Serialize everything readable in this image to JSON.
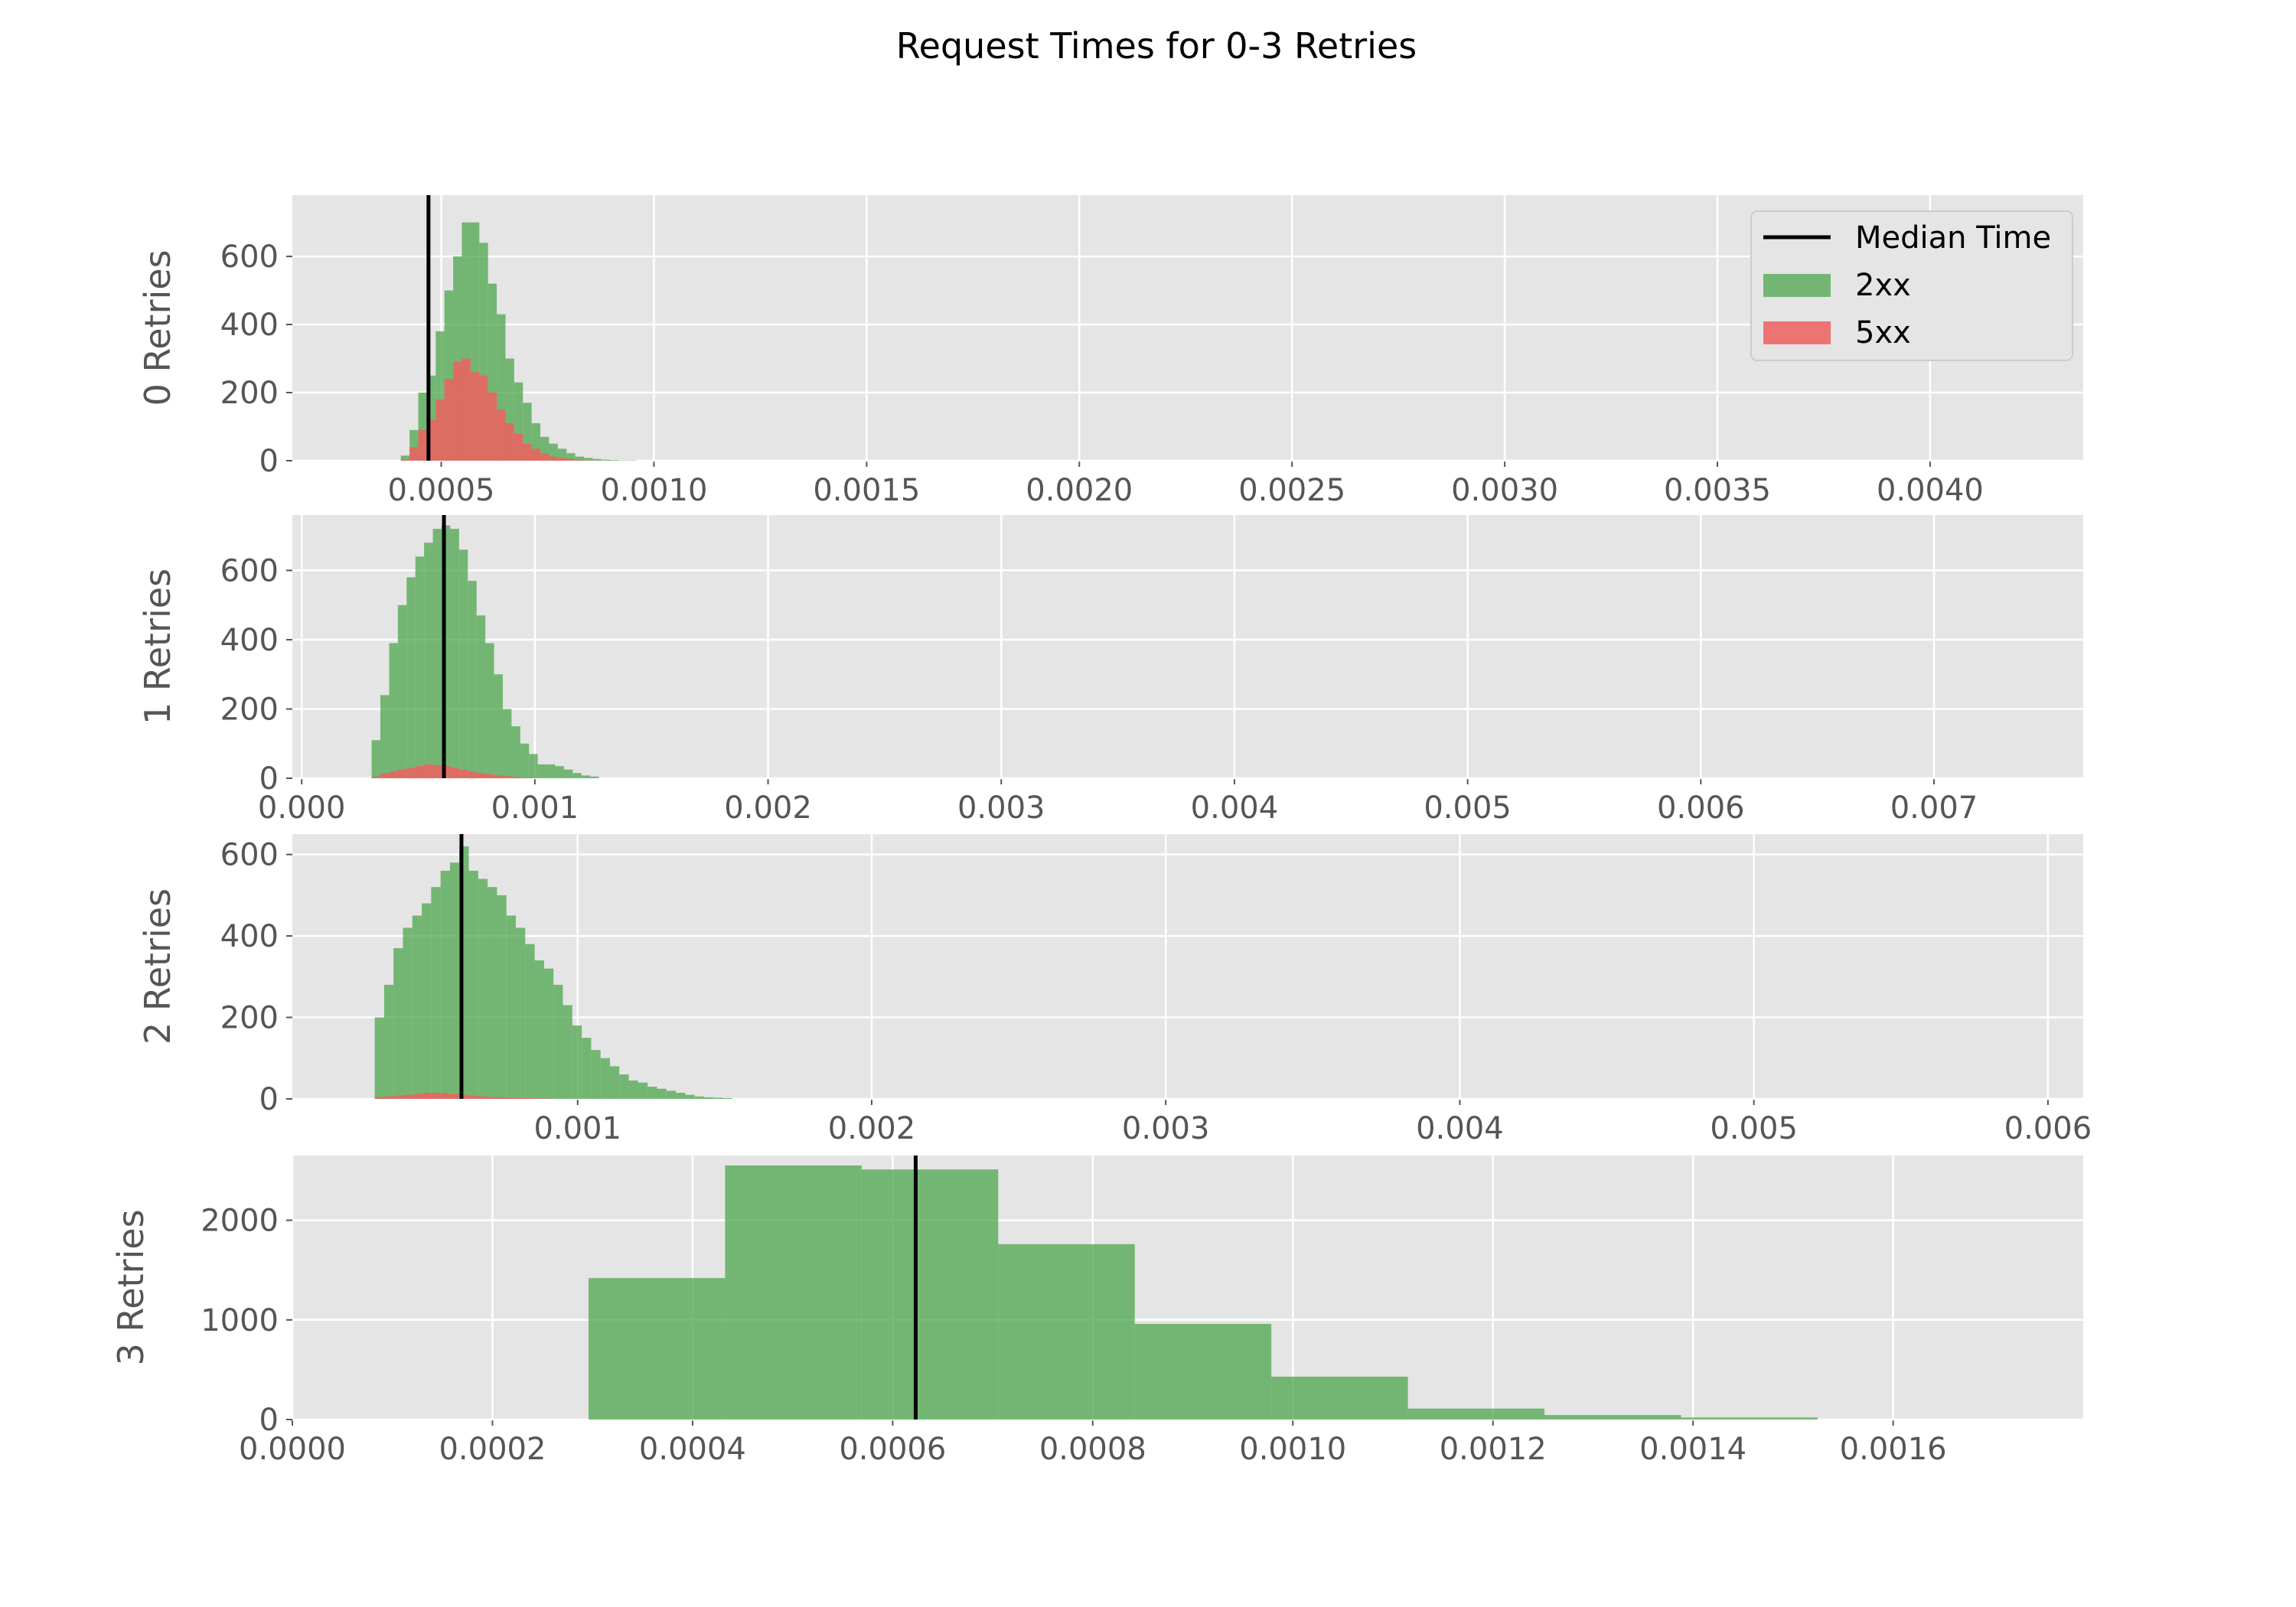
{
  "title": "Request Times for 0-3 Retries",
  "legend": {
    "placement": "upper-right of first panel",
    "entries": [
      {
        "label": "Median Time",
        "kind": "line",
        "color": "#000000"
      },
      {
        "label": "2xx",
        "kind": "patch",
        "color": "#4ca64c"
      },
      {
        "label": "5xx",
        "kind": "patch",
        "color": "#f06060"
      }
    ]
  },
  "colors": {
    "panel_bg": "#e5e5e5",
    "grid": "#ffffff",
    "ok": "#4ca64c",
    "err": "#f06060",
    "median": "#000000"
  },
  "chart_data": [
    {
      "type": "histogram",
      "ylabel": "0 Retries",
      "xlim": [
        0.00015,
        0.00436
      ],
      "ylim": [
        0,
        780
      ],
      "xticks": [
        0.0005,
        0.001,
        0.0015,
        0.002,
        0.0025,
        0.003,
        0.0035,
        0.004
      ],
      "xtick_labels": [
        "0.0005",
        "0.0010",
        "0.0015",
        "0.0020",
        "0.0025",
        "0.0030",
        "0.0035",
        "0.0040"
      ],
      "yticks": [
        0,
        200,
        400,
        600
      ],
      "ytick_labels": [
        "0",
        "200",
        "400",
        "600"
      ],
      "median": 0.00047,
      "series": [
        {
          "name": "2xx",
          "bin_start": 0.0002,
          "bin_width": 2.05e-05,
          "values": [
            0,
            0,
            0,
            0,
            0,
            0,
            0,
            0,
            0,
            0,
            15,
            90,
            200,
            250,
            380,
            500,
            600,
            700,
            700,
            640,
            520,
            430,
            300,
            230,
            170,
            110,
            70,
            50,
            35,
            22,
            12,
            8,
            5,
            3,
            2,
            1,
            1,
            0,
            0,
            0
          ]
        },
        {
          "name": "5xx",
          "bin_start": 0.0002,
          "bin_width": 2.05e-05,
          "values": [
            0,
            0,
            0,
            0,
            0,
            0,
            0,
            0,
            0,
            0,
            3,
            40,
            90,
            120,
            180,
            240,
            290,
            300,
            260,
            250,
            200,
            150,
            110,
            80,
            50,
            35,
            22,
            12,
            8,
            5,
            2,
            1,
            0,
            0,
            0,
            0,
            0,
            0,
            0,
            0
          ]
        }
      ]
    },
    {
      "type": "histogram",
      "ylabel": "1 Retries",
      "xlim": [
        -4e-05,
        0.00764
      ],
      "ylim": [
        0,
        760
      ],
      "xticks": [
        0.0,
        0.001,
        0.002,
        0.003,
        0.004,
        0.005,
        0.006,
        0.007
      ],
      "xtick_labels": [
        "0.000",
        "0.001",
        "0.002",
        "0.003",
        "0.004",
        "0.005",
        "0.006",
        "0.007"
      ],
      "yticks": [
        0,
        200,
        400,
        600
      ],
      "ytick_labels": [
        "0",
        "200",
        "400",
        "600"
      ],
      "median": 0.00061,
      "series": [
        {
          "name": "2xx",
          "bin_start": 0.0003,
          "bin_width": 3.75e-05,
          "values": [
            110,
            240,
            390,
            500,
            580,
            640,
            680,
            720,
            730,
            720,
            660,
            570,
            470,
            390,
            300,
            200,
            150,
            100,
            70,
            40,
            40,
            35,
            25,
            15,
            8,
            5,
            0,
            0,
            0,
            0
          ]
        },
        {
          "name": "5xx",
          "bin_start": 0.0003,
          "bin_width": 3.75e-05,
          "values": [
            5,
            15,
            20,
            25,
            30,
            35,
            40,
            38,
            35,
            30,
            25,
            20,
            15,
            12,
            8,
            6,
            4,
            2,
            1,
            0,
            0,
            0,
            0,
            0,
            0,
            0,
            0,
            0,
            0,
            0
          ]
        }
      ]
    },
    {
      "type": "histogram",
      "ylabel": "2 Retries",
      "xlim": [
        3e-05,
        0.00612
      ],
      "ylim": [
        0,
        650
      ],
      "xticks": [
        0.001,
        0.002,
        0.003,
        0.004,
        0.005,
        0.006
      ],
      "xtick_labels": [
        "0.001",
        "0.002",
        "0.003",
        "0.004",
        "0.005",
        "0.006"
      ],
      "yticks": [
        0,
        200,
        400,
        600
      ],
      "ytick_labels": [
        "0",
        "200",
        "400",
        "600"
      ],
      "median": 0.000605,
      "series": [
        {
          "name": "2xx",
          "bin_start": 0.00031,
          "bin_width": 3.2e-05,
          "values": [
            200,
            280,
            370,
            420,
            450,
            480,
            520,
            560,
            580,
            620,
            560,
            540,
            520,
            500,
            450,
            420,
            380,
            340,
            320,
            280,
            230,
            180,
            150,
            120,
            100,
            80,
            60,
            45,
            40,
            30,
            25,
            20,
            15,
            10,
            6,
            4,
            3,
            2,
            0,
            0
          ]
        },
        {
          "name": "5xx",
          "bin_start": 0.00031,
          "bin_width": 3.2e-05,
          "values": [
            4,
            6,
            8,
            10,
            12,
            15,
            15,
            14,
            12,
            10,
            8,
            6,
            5,
            4,
            3,
            2,
            2,
            1,
            1,
            0,
            0,
            0,
            0,
            0,
            0,
            0,
            0,
            0,
            0,
            0,
            0,
            0,
            0,
            0,
            0,
            0,
            0,
            0,
            0,
            0
          ]
        }
      ]
    },
    {
      "type": "histogram",
      "ylabel": "3 Retries",
      "xlim": [
        0.0,
        0.00179
      ],
      "ylim": [
        0,
        2650
      ],
      "xticks": [
        0.0,
        0.0002,
        0.0004,
        0.0006,
        0.0008,
        0.001,
        0.0012,
        0.0014,
        0.0016
      ],
      "xtick_labels": [
        "0.0000",
        "0.0002",
        "0.0004",
        "0.0006",
        "0.0008",
        "0.0010",
        "0.0012",
        "0.0014",
        "0.0016"
      ],
      "yticks": [
        0,
        1000,
        2000
      ],
      "ytick_labels": [
        "0",
        "1000",
        "2000"
      ],
      "median": 0.000623,
      "series": [
        {
          "name": "2xx",
          "bin_start": 0.000296,
          "bin_width": 0.0001365,
          "values": [
            1420,
            2550,
            2510,
            1760,
            960,
            430,
            110,
            45,
            20
          ]
        }
      ]
    }
  ]
}
